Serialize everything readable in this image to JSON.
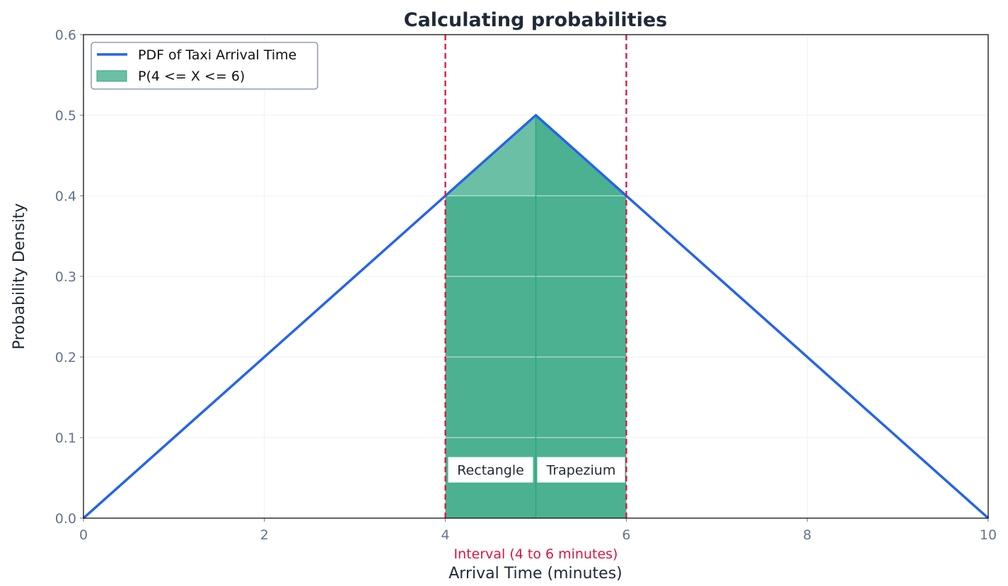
{
  "chart_data": {
    "type": "line",
    "title": "Calculating probabilities",
    "xlabel": "Arrival Time (minutes)",
    "ylabel": "Probability Density",
    "xlim": [
      0,
      10
    ],
    "ylim": [
      0,
      0.6
    ],
    "xticks": [
      "0",
      "2",
      "4",
      "6",
      "8",
      "10"
    ],
    "yticks": [
      "0.0",
      "0.1",
      "0.2",
      "0.3",
      "0.4",
      "0.5",
      "0.6"
    ],
    "grid": true,
    "legend_position": "top-left",
    "series": [
      {
        "name": "PDF of Taxi Arrival Time",
        "x": [
          0,
          5,
          10
        ],
        "y": [
          0,
          0.5,
          0
        ],
        "color": "#2563eb"
      }
    ],
    "shaded_area": {
      "name": "P(4 <= X <= 6)",
      "x_from": 4,
      "x_to": 6,
      "color": "#4bb190",
      "light_color": "#6abfa4"
    },
    "vlines": [
      4,
      6
    ],
    "vline_color": "#dc143c",
    "annotations": [
      {
        "text": "Rectangle",
        "x": 4.5,
        "y": 0.06
      },
      {
        "text": "Trapezium",
        "x": 5.5,
        "y": 0.06
      },
      {
        "text": "Interval (4 to 6 minutes)",
        "x": 5,
        "y": -0.058,
        "color": "#dc143c"
      }
    ]
  }
}
